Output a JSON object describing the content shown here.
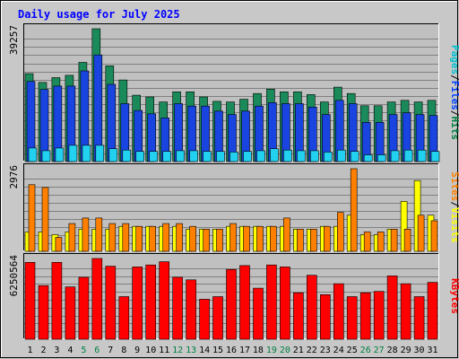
{
  "chart_data": {
    "title": "Daily usage for July 2025",
    "type": "bar",
    "x": [
      "1",
      "2",
      "3",
      "4",
      "5",
      "6",
      "7",
      "8",
      "9",
      "10",
      "11",
      "12",
      "13",
      "14",
      "15",
      "16",
      "17",
      "18",
      "19",
      "20",
      "21",
      "22",
      "23",
      "24",
      "25",
      "26",
      "27",
      "28",
      "29",
      "30",
      "31"
    ],
    "weekend_days": [
      "5",
      "6",
      "12",
      "13",
      "19",
      "20",
      "26",
      "27"
    ],
    "panels": [
      {
        "ymax_label": "39257",
        "ymax": 39257,
        "legend": [
          {
            "text": "Pages",
            "color": "#00c0d0"
          },
          {
            "text": "Files",
            "color": "#0040ff"
          },
          {
            "text": "Hits",
            "color": "#008040"
          }
        ],
        "series": [
          {
            "name": "Hits",
            "color": "#1a8a5a",
            "values": [
              26000,
              23400,
              24800,
              25500,
              29300,
              39257,
              28300,
              24100,
              19600,
              19100,
              17600,
              20600,
              20600,
              19100,
              17800,
              17600,
              18400,
              20100,
              21400,
              20600,
              20600,
              19800,
              17600,
              22000,
              20100,
              16500,
              16500,
              17600,
              18100,
              17600,
              18100
            ]
          },
          {
            "name": "Files",
            "color": "#1a44e0",
            "values": [
              23700,
              21300,
              22300,
              22300,
              26800,
              31500,
              22800,
              17100,
              15100,
              14100,
              12900,
              17100,
              16400,
              16400,
              14900,
              13900,
              14900,
              16400,
              17400,
              17100,
              17100,
              16100,
              13900,
              18100,
              17100,
              11600,
              11600,
              13900,
              14400,
              13900,
              13600
            ]
          },
          {
            "name": "Pages",
            "color": "#22d0f0",
            "values": [
              4000,
              3200,
              4000,
              4800,
              4800,
              4800,
              3800,
              3400,
              3000,
              3000,
              3000,
              3200,
              3200,
              3000,
              3000,
              2800,
              3000,
              3200,
              3800,
              3400,
              3200,
              3200,
              2800,
              3400,
              3000,
              2000,
              2000,
              3200,
              3400,
              3400,
              3000
            ]
          }
        ]
      },
      {
        "ymax_label": "2976",
        "ymax": 2976,
        "legend": [
          {
            "text": "Sites",
            "color": "#ff8000"
          },
          {
            "text": "Visits",
            "color": "#ffff00"
          }
        ],
        "series": [
          {
            "name": "Visits",
            "color": "#ffff00",
            "values": [
              700,
              700,
              600,
              700,
              800,
              800,
              800,
              900,
              900,
              900,
              900,
              900,
              800,
              800,
              800,
              900,
              900,
              900,
              900,
              900,
              800,
              800,
              900,
              900,
              1300,
              600,
              600,
              800,
              1800,
              2550,
              1300
            ]
          },
          {
            "name": "Sites",
            "color": "#ff8000",
            "values": [
              2400,
              2300,
              500,
              1000,
              1200,
              1200,
              1000,
              1000,
              900,
              900,
              1000,
              1000,
              900,
              800,
              800,
              1000,
              900,
              900,
              900,
              1200,
              800,
              800,
              900,
              1400,
              2976,
              700,
              700,
              800,
              800,
              1300,
              1100
            ]
          }
        ]
      },
      {
        "ymax_label": "6250564",
        "ymax": 6250564,
        "legend": [
          {
            "text": "KBytes",
            "color": "#ff0000"
          }
        ],
        "series": [
          {
            "name": "KBytes",
            "color": "#ff0000",
            "values": [
              5950000,
              4150000,
              5950000,
              4050000,
              4800000,
              6250564,
              5650000,
              3300000,
              5600000,
              5750000,
              6000000,
              4800000,
              4600000,
              3100000,
              3300000,
              5400000,
              5700000,
              3950000,
              5750000,
              5600000,
              3600000,
              4950000,
              3450000,
              4300000,
              3300000,
              3600000,
              3700000,
              4900000,
              4300000,
              3300000,
              4400000
            ]
          }
        ]
      }
    ]
  }
}
